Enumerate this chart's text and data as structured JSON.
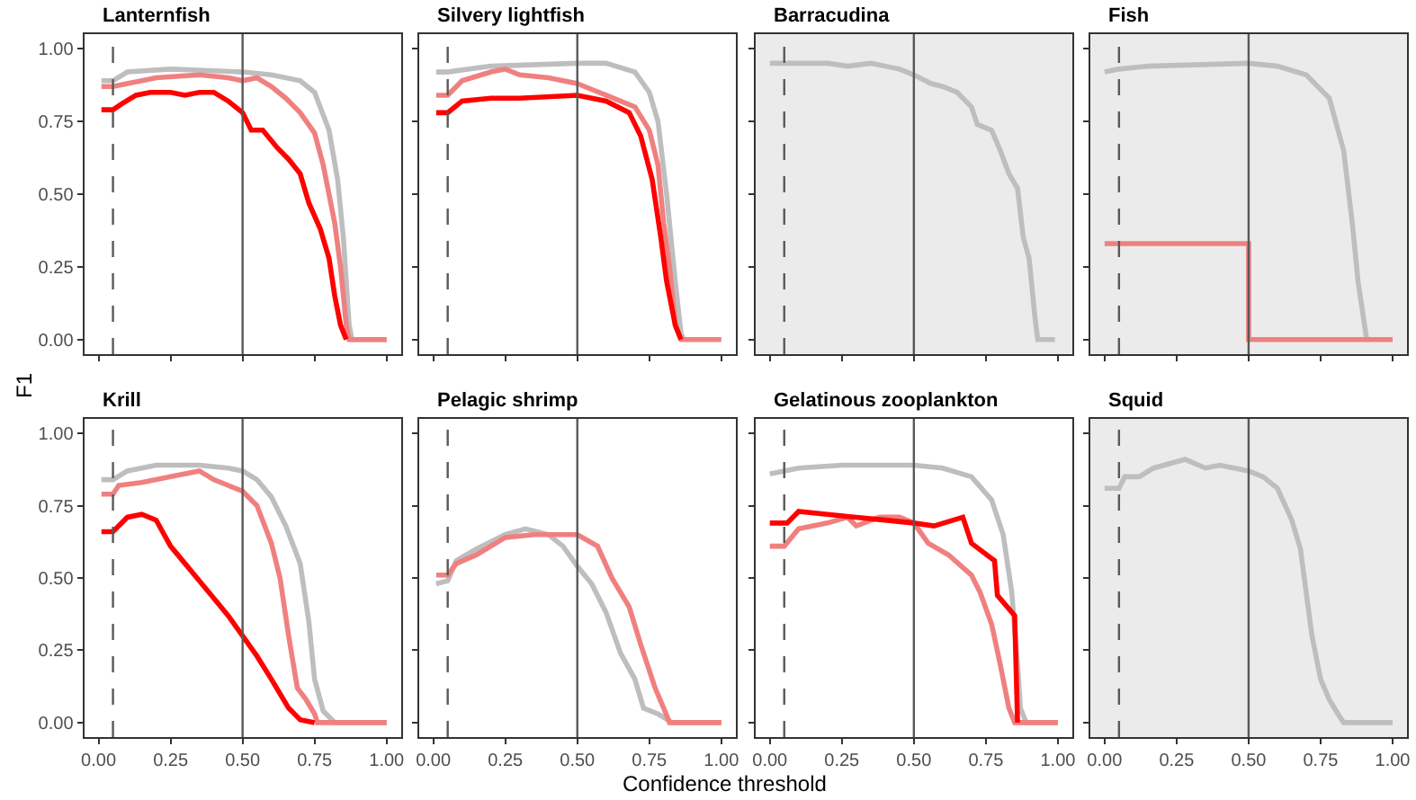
{
  "chart_data": [
    {
      "type": "line",
      "title": "Lanternfish",
      "ylabel": "F1",
      "xlim": [
        -0.05,
        1.05
      ],
      "ylim": [
        -0.05,
        1.05
      ],
      "xticks": [
        {
          "value": 0,
          "label": null
        },
        {
          "value": 0.25,
          "label": null
        },
        {
          "value": 0.5,
          "label": null
        },
        {
          "value": 0.75,
          "label": null
        },
        {
          "value": 1,
          "label": null
        }
      ],
      "yticks": [
        {
          "value": 0,
          "label": "0.00"
        },
        {
          "value": 0.25,
          "label": "0.25"
        },
        {
          "value": 0.5,
          "label": "0.50"
        },
        {
          "value": 0.75,
          "label": "0.75"
        },
        {
          "value": 1,
          "label": "1.00"
        }
      ],
      "tick_labels": "y",
      "grid": false,
      "line_style": "solid",
      "marker": "none",
      "ref_lines": [
        {
          "axis": "x",
          "value": 0.05,
          "color": "#595959",
          "line_style": "dashed"
        },
        {
          "axis": "x",
          "value": 0.5,
          "color": "#595959",
          "line_style": "solid"
        }
      ],
      "series": [
        {
          "color": "#bebebe",
          "x": [
            0.01,
            0.05,
            0.1,
            0.25,
            0.5,
            0.6,
            0.7,
            0.75,
            0.8,
            0.83,
            0.85,
            0.87,
            0.88,
            1.0
          ],
          "values": [
            0.89,
            0.89,
            0.92,
            0.93,
            0.92,
            0.91,
            0.89,
            0.85,
            0.72,
            0.55,
            0.35,
            0.05,
            0,
            0
          ]
        },
        {
          "color": "#f08080",
          "x": [
            0.01,
            0.05,
            0.1,
            0.2,
            0.35,
            0.45,
            0.5,
            0.55,
            0.6,
            0.65,
            0.7,
            0.75,
            0.78,
            0.82,
            0.84,
            0.86,
            0.87,
            1.0
          ],
          "values": [
            0.87,
            0.87,
            0.88,
            0.9,
            0.91,
            0.9,
            0.89,
            0.9,
            0.87,
            0.83,
            0.78,
            0.71,
            0.6,
            0.4,
            0.25,
            0.05,
            0,
            0
          ]
        },
        {
          "color": "#ff0000",
          "x": [
            0.01,
            0.05,
            0.08,
            0.13,
            0.18,
            0.25,
            0.3,
            0.35,
            0.4,
            0.45,
            0.5,
            0.53,
            0.57,
            0.62,
            0.66,
            0.7,
            0.73,
            0.77,
            0.8,
            0.82,
            0.84,
            0.86
          ],
          "values": [
            0.79,
            0.79,
            0.81,
            0.84,
            0.85,
            0.85,
            0.84,
            0.85,
            0.85,
            0.82,
            0.78,
            0.72,
            0.72,
            0.66,
            0.62,
            0.57,
            0.47,
            0.38,
            0.28,
            0.15,
            0.05,
            0
          ]
        }
      ]
    },
    {
      "type": "line",
      "title": "Silvery lightfish",
      "xlim": [
        -0.05,
        1.05
      ],
      "ylim": [
        -0.05,
        1.05
      ],
      "xticks": [
        {
          "value": 0,
          "label": null
        },
        {
          "value": 0.25,
          "label": null
        },
        {
          "value": 0.5,
          "label": null
        },
        {
          "value": 0.75,
          "label": null
        },
        {
          "value": 1,
          "label": null
        }
      ],
      "yticks": [
        {
          "value": 0,
          "label": null
        },
        {
          "value": 0.25,
          "label": null
        },
        {
          "value": 0.5,
          "label": null
        },
        {
          "value": 0.75,
          "label": null
        },
        {
          "value": 1,
          "label": null
        }
      ],
      "tick_labels": false,
      "grid": false,
      "line_style": "solid",
      "marker": "none",
      "ref_lines": [
        {
          "axis": "x",
          "value": 0.05,
          "color": "#595959",
          "line_style": "dashed"
        },
        {
          "axis": "x",
          "value": 0.5,
          "color": "#595959",
          "line_style": "solid"
        }
      ],
      "series": [
        {
          "color": "#bebebe",
          "x": [
            0.01,
            0.05,
            0.2,
            0.5,
            0.6,
            0.7,
            0.75,
            0.78,
            0.81,
            0.84,
            0.86,
            0.87
          ],
          "values": [
            0.92,
            0.92,
            0.94,
            0.95,
            0.95,
            0.92,
            0.85,
            0.75,
            0.5,
            0.2,
            0.02,
            0
          ]
        },
        {
          "color": "#f08080",
          "x": [
            0.01,
            0.05,
            0.1,
            0.2,
            0.25,
            0.3,
            0.4,
            0.5,
            0.55,
            0.6,
            0.7,
            0.75,
            0.78,
            0.8,
            0.82,
            0.84,
            0.86,
            1.0
          ],
          "values": [
            0.84,
            0.84,
            0.89,
            0.92,
            0.93,
            0.91,
            0.9,
            0.88,
            0.86,
            0.84,
            0.8,
            0.72,
            0.6,
            0.4,
            0.25,
            0.05,
            0,
            0
          ]
        },
        {
          "color": "#ff0000",
          "x": [
            0.01,
            0.05,
            0.1,
            0.2,
            0.3,
            0.5,
            0.6,
            0.68,
            0.72,
            0.76,
            0.79,
            0.81,
            0.84,
            0.86
          ],
          "values": [
            0.78,
            0.78,
            0.82,
            0.83,
            0.83,
            0.84,
            0.82,
            0.78,
            0.7,
            0.55,
            0.35,
            0.2,
            0.05,
            0
          ]
        }
      ]
    },
    {
      "type": "line",
      "title": "Barracudina",
      "xlim": [
        -0.05,
        1.05
      ],
      "ylim": [
        -0.05,
        1.05
      ],
      "xticks": [
        {
          "value": 0,
          "label": null
        },
        {
          "value": 0.25,
          "label": null
        },
        {
          "value": 0.5,
          "label": null
        },
        {
          "value": 0.75,
          "label": null
        },
        {
          "value": 1,
          "label": null
        }
      ],
      "yticks": [
        {
          "value": 0,
          "label": null
        },
        {
          "value": 0.25,
          "label": null
        },
        {
          "value": 0.5,
          "label": null
        },
        {
          "value": 0.75,
          "label": null
        },
        {
          "value": 1,
          "label": null
        }
      ],
      "tick_labels": false,
      "grid": false,
      "line_style": "solid",
      "marker": "none",
      "bands": [
        {
          "axis": "x",
          "from": -0.05,
          "to": 1.05,
          "color": "#ebebeb"
        }
      ],
      "ref_lines": [
        {
          "axis": "x",
          "value": 0.05,
          "color": "#595959",
          "line_style": "dashed"
        },
        {
          "axis": "x",
          "value": 0.5,
          "color": "#595959",
          "line_style": "solid"
        }
      ],
      "series": [
        {
          "color": "#bebebe",
          "x": [
            0.0,
            0.2,
            0.27,
            0.35,
            0.45,
            0.5,
            0.56,
            0.6,
            0.65,
            0.7,
            0.72,
            0.77,
            0.8,
            0.83,
            0.86,
            0.88,
            0.9,
            0.92,
            0.93,
            0.99
          ],
          "values": [
            0.95,
            0.95,
            0.94,
            0.95,
            0.93,
            0.91,
            0.88,
            0.87,
            0.85,
            0.8,
            0.74,
            0.72,
            0.65,
            0.57,
            0.52,
            0.35,
            0.28,
            0.08,
            0,
            0
          ]
        }
      ]
    },
    {
      "type": "line",
      "title": "Fish",
      "xlim": [
        -0.05,
        1.05
      ],
      "ylim": [
        -0.05,
        1.05
      ],
      "xticks": [
        {
          "value": 0,
          "label": null
        },
        {
          "value": 0.25,
          "label": null
        },
        {
          "value": 0.5,
          "label": null
        },
        {
          "value": 0.75,
          "label": null
        },
        {
          "value": 1,
          "label": null
        }
      ],
      "yticks": [
        {
          "value": 0,
          "label": null
        },
        {
          "value": 0.25,
          "label": null
        },
        {
          "value": 0.5,
          "label": null
        },
        {
          "value": 0.75,
          "label": null
        },
        {
          "value": 1,
          "label": null
        }
      ],
      "tick_labels": false,
      "grid": false,
      "line_style": "solid",
      "marker": "none",
      "bands": [
        {
          "axis": "x",
          "from": -0.05,
          "to": 1.05,
          "color": "#ebebeb"
        }
      ],
      "ref_lines": [
        {
          "axis": "x",
          "value": 0.05,
          "color": "#595959",
          "line_style": "dashed"
        },
        {
          "axis": "x",
          "value": 0.5,
          "color": "#595959",
          "line_style": "solid"
        }
      ],
      "series": [
        {
          "color": "#bebebe",
          "x": [
            0.0,
            0.05,
            0.15,
            0.5,
            0.6,
            0.7,
            0.78,
            0.83,
            0.86,
            0.88,
            0.91
          ],
          "values": [
            0.92,
            0.93,
            0.94,
            0.95,
            0.94,
            0.91,
            0.83,
            0.65,
            0.4,
            0.2,
            0
          ]
        },
        {
          "color": "#f08080",
          "x": [
            0.0,
            0.5,
            0.5,
            1.0
          ],
          "values": [
            0.33,
            0.33,
            0,
            0
          ]
        }
      ]
    },
    {
      "type": "line",
      "title": "Krill",
      "xlim": [
        -0.05,
        1.05
      ],
      "ylim": [
        -0.05,
        1.05
      ],
      "xticks": [
        {
          "value": 0,
          "label": "0.00"
        },
        {
          "value": 0.25,
          "label": "0.25"
        },
        {
          "value": 0.5,
          "label": "0.50"
        },
        {
          "value": 0.75,
          "label": "0.75"
        },
        {
          "value": 1,
          "label": "1.00"
        }
      ],
      "yticks": [
        {
          "value": 0,
          "label": "0.00"
        },
        {
          "value": 0.25,
          "label": "0.25"
        },
        {
          "value": 0.5,
          "label": "0.50"
        },
        {
          "value": 0.75,
          "label": "0.75"
        },
        {
          "value": 1,
          "label": "1.00"
        }
      ],
      "grid": false,
      "line_style": "solid",
      "marker": "none",
      "ref_lines": [
        {
          "axis": "x",
          "value": 0.05,
          "color": "#595959",
          "line_style": "dashed"
        },
        {
          "axis": "x",
          "value": 0.5,
          "color": "#595959",
          "line_style": "solid"
        }
      ],
      "series": [
        {
          "color": "#bebebe",
          "x": [
            0.01,
            0.05,
            0.1,
            0.2,
            0.35,
            0.45,
            0.5,
            0.55,
            0.6,
            0.65,
            0.7,
            0.73,
            0.75,
            0.78,
            0.82,
            1.0
          ],
          "values": [
            0.84,
            0.84,
            0.87,
            0.89,
            0.89,
            0.88,
            0.87,
            0.84,
            0.78,
            0.68,
            0.55,
            0.35,
            0.15,
            0.04,
            0,
            0
          ]
        },
        {
          "color": "#f08080",
          "x": [
            0.01,
            0.05,
            0.07,
            0.15,
            0.25,
            0.35,
            0.4,
            0.45,
            0.5,
            0.55,
            0.6,
            0.63,
            0.66,
            0.69,
            0.72,
            0.75,
            0.76,
            1.0
          ],
          "values": [
            0.79,
            0.79,
            0.82,
            0.83,
            0.85,
            0.87,
            0.84,
            0.82,
            0.8,
            0.75,
            0.62,
            0.5,
            0.3,
            0.12,
            0.08,
            0.03,
            0,
            0
          ]
        },
        {
          "color": "#ff0000",
          "x": [
            0.01,
            0.05,
            0.1,
            0.15,
            0.2,
            0.25,
            0.3,
            0.35,
            0.4,
            0.45,
            0.5,
            0.55,
            0.6,
            0.63,
            0.66,
            0.7,
            0.75
          ],
          "values": [
            0.66,
            0.66,
            0.71,
            0.72,
            0.7,
            0.61,
            0.55,
            0.49,
            0.43,
            0.37,
            0.3,
            0.23,
            0.15,
            0.1,
            0.05,
            0.01,
            0
          ]
        }
      ]
    },
    {
      "type": "line",
      "title": "Pelagic shrimp",
      "xlabel": "Confidence threshold",
      "xlim": [
        -0.05,
        1.05
      ],
      "ylim": [
        -0.05,
        1.05
      ],
      "xticks": [
        {
          "value": 0,
          "label": "0.00"
        },
        {
          "value": 0.25,
          "label": "0.25"
        },
        {
          "value": 0.5,
          "label": "0.50"
        },
        {
          "value": 0.75,
          "label": "0.75"
        },
        {
          "value": 1,
          "label": "1.00"
        }
      ],
      "yticks": [
        {
          "value": 0,
          "label": null
        },
        {
          "value": 0.25,
          "label": null
        },
        {
          "value": 0.5,
          "label": null
        },
        {
          "value": 0.75,
          "label": null
        },
        {
          "value": 1,
          "label": null
        }
      ],
      "tick_labels": "x",
      "grid": false,
      "line_style": "solid",
      "marker": "none",
      "ref_lines": [
        {
          "axis": "x",
          "value": 0.05,
          "color": "#595959",
          "line_style": "dashed"
        },
        {
          "axis": "x",
          "value": 0.5,
          "color": "#595959",
          "line_style": "solid"
        }
      ],
      "series": [
        {
          "color": "#bebebe",
          "x": [
            0.01,
            0.05,
            0.08,
            0.15,
            0.25,
            0.32,
            0.4,
            0.45,
            0.5,
            0.55,
            0.6,
            0.65,
            0.7,
            0.73,
            0.78,
            0.83,
            1.0
          ],
          "values": [
            0.48,
            0.49,
            0.56,
            0.6,
            0.65,
            0.67,
            0.65,
            0.61,
            0.54,
            0.48,
            0.38,
            0.24,
            0.15,
            0.05,
            0.03,
            0,
            0
          ]
        },
        {
          "color": "#f08080",
          "x": [
            0.01,
            0.05,
            0.08,
            0.15,
            0.25,
            0.35,
            0.45,
            0.5,
            0.57,
            0.62,
            0.68,
            0.72,
            0.77,
            0.8,
            0.82,
            1.0
          ],
          "values": [
            0.51,
            0.51,
            0.55,
            0.58,
            0.64,
            0.65,
            0.65,
            0.65,
            0.61,
            0.5,
            0.4,
            0.27,
            0.12,
            0.05,
            0,
            0
          ]
        }
      ]
    },
    {
      "type": "line",
      "title": "Gelatinous zooplankton",
      "xlim": [
        -0.05,
        1.05
      ],
      "ylim": [
        -0.05,
        1.05
      ],
      "xticks": [
        {
          "value": 0,
          "label": "0.00"
        },
        {
          "value": 0.25,
          "label": "0.25"
        },
        {
          "value": 0.5,
          "label": "0.50"
        },
        {
          "value": 0.75,
          "label": "0.75"
        },
        {
          "value": 1,
          "label": "1.00"
        }
      ],
      "yticks": [
        {
          "value": 0,
          "label": null
        },
        {
          "value": 0.25,
          "label": null
        },
        {
          "value": 0.5,
          "label": null
        },
        {
          "value": 0.75,
          "label": null
        },
        {
          "value": 1,
          "label": null
        }
      ],
      "tick_labels": "x",
      "grid": false,
      "line_style": "solid",
      "marker": "none",
      "ref_lines": [
        {
          "axis": "x",
          "value": 0.05,
          "color": "#595959",
          "line_style": "dashed"
        },
        {
          "axis": "x",
          "value": 0.5,
          "color": "#595959",
          "line_style": "solid"
        }
      ],
      "series": [
        {
          "color": "#bebebe",
          "x": [
            0.0,
            0.1,
            0.25,
            0.4,
            0.5,
            0.6,
            0.7,
            0.77,
            0.81,
            0.84,
            0.86,
            0.87,
            0.89,
            1.0
          ],
          "values": [
            0.86,
            0.88,
            0.89,
            0.89,
            0.89,
            0.88,
            0.85,
            0.77,
            0.65,
            0.45,
            0.2,
            0.05,
            0,
            0
          ]
        },
        {
          "color": "#f08080",
          "x": [
            0.0,
            0.05,
            0.1,
            0.2,
            0.27,
            0.3,
            0.38,
            0.45,
            0.5,
            0.55,
            0.62,
            0.7,
            0.73,
            0.77,
            0.8,
            0.83,
            0.85,
            1.0
          ],
          "values": [
            0.61,
            0.61,
            0.67,
            0.69,
            0.71,
            0.68,
            0.71,
            0.71,
            0.69,
            0.62,
            0.58,
            0.51,
            0.45,
            0.34,
            0.2,
            0.05,
            0,
            0
          ]
        },
        {
          "color": "#ff0000",
          "x": [
            0.0,
            0.06,
            0.1,
            0.2,
            0.3,
            0.4,
            0.5,
            0.57,
            0.67,
            0.7,
            0.78,
            0.79,
            0.85,
            0.86
          ],
          "values": [
            0.69,
            0.69,
            0.73,
            0.72,
            0.71,
            0.7,
            0.69,
            0.68,
            0.71,
            0.62,
            0.56,
            0.44,
            0.37,
            0
          ]
        }
      ]
    },
    {
      "type": "line",
      "title": "Squid",
      "xlim": [
        -0.05,
        1.05
      ],
      "ylim": [
        -0.05,
        1.05
      ],
      "xticks": [
        {
          "value": 0,
          "label": "0.00"
        },
        {
          "value": 0.25,
          "label": "0.25"
        },
        {
          "value": 0.5,
          "label": "0.50"
        },
        {
          "value": 0.75,
          "label": "0.75"
        },
        {
          "value": 1,
          "label": "1.00"
        }
      ],
      "yticks": [
        {
          "value": 0,
          "label": null
        },
        {
          "value": 0.25,
          "label": null
        },
        {
          "value": 0.5,
          "label": null
        },
        {
          "value": 0.75,
          "label": null
        },
        {
          "value": 1,
          "label": null
        }
      ],
      "tick_labels": "x",
      "grid": false,
      "line_style": "solid",
      "marker": "none",
      "bands": [
        {
          "axis": "x",
          "from": -0.05,
          "to": 1.05,
          "color": "#ebebeb"
        }
      ],
      "ref_lines": [
        {
          "axis": "x",
          "value": 0.05,
          "color": "#595959",
          "line_style": "dashed"
        },
        {
          "axis": "x",
          "value": 0.5,
          "color": "#595959",
          "line_style": "solid"
        }
      ],
      "series": [
        {
          "color": "#bebebe",
          "x": [
            0.0,
            0.05,
            0.07,
            0.12,
            0.17,
            0.28,
            0.35,
            0.4,
            0.45,
            0.5,
            0.55,
            0.6,
            0.65,
            0.68,
            0.7,
            0.72,
            0.75,
            0.78,
            0.81,
            0.83,
            1.0
          ],
          "values": [
            0.81,
            0.81,
            0.85,
            0.85,
            0.88,
            0.91,
            0.88,
            0.89,
            0.88,
            0.87,
            0.85,
            0.81,
            0.7,
            0.6,
            0.45,
            0.3,
            0.15,
            0.08,
            0.03,
            0,
            0
          ]
        }
      ]
    }
  ]
}
